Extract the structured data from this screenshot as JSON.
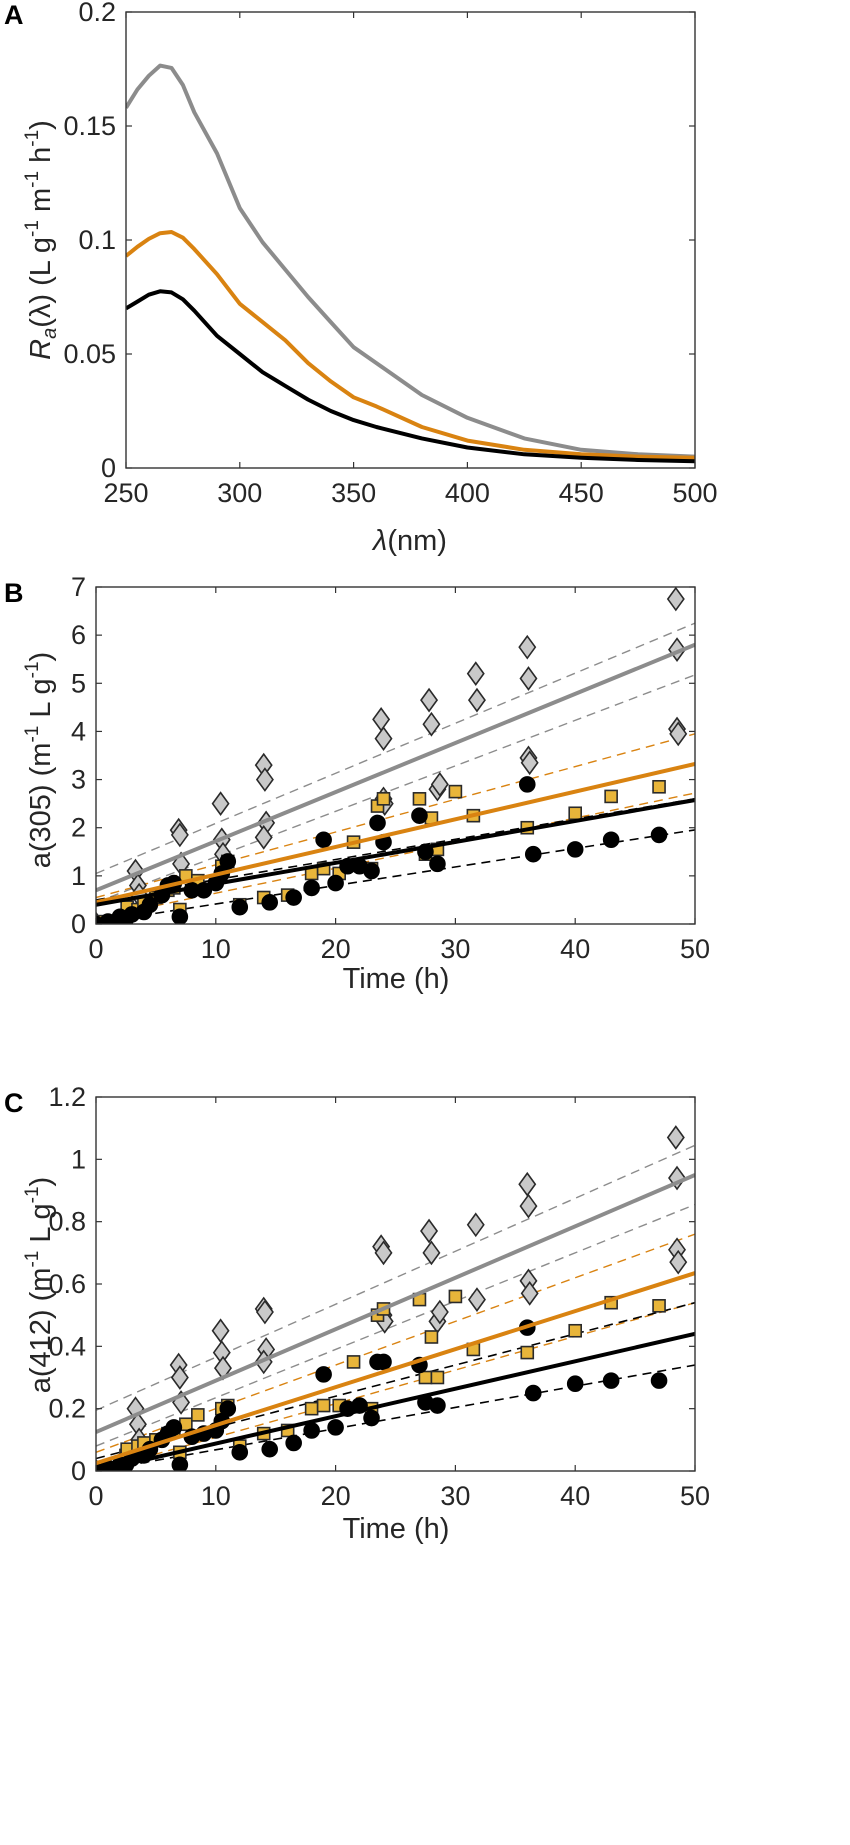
{
  "colors": {
    "gray": "#8c8c8c",
    "orange": "#d98311",
    "black": "#000000",
    "marker_gray": "#c9c9c9",
    "marker_orange": "#e8b53a"
  },
  "chart_data": [
    {
      "panel": "A",
      "type": "line",
      "xlabel_sym": "λ",
      "xlabel_unit": "(nm)",
      "ylabel_sym": "R",
      "ylabel_sub": "a",
      "ylabel_rest": "(λ)  (L g",
      "ylabel_m": "m",
      "ylabel_h": "h",
      "ylabel_sup": "-1",
      "ylabel_close": ")",
      "xlim": [
        250,
        500
      ],
      "ylim": [
        0,
        0.2
      ],
      "xticks": [
        250,
        300,
        350,
        400,
        450,
        500
      ],
      "yticks": [
        0,
        0.05,
        0.1,
        0.15,
        0.2
      ],
      "xtick_labels": [
        "250",
        "300",
        "350",
        "400",
        "450",
        "500"
      ],
      "ytick_labels": [
        "0",
        "0.05",
        "0.1",
        "0.15",
        "0.2"
      ],
      "series": [
        {
          "name": "gray",
          "x": [
            250,
            255,
            260,
            265,
            270,
            275,
            280,
            290,
            300,
            310,
            320,
            330,
            340,
            350,
            360,
            380,
            400,
            425,
            450,
            475,
            500
          ],
          "y": [
            0.158,
            0.166,
            0.172,
            0.1765,
            0.1755,
            0.168,
            0.156,
            0.138,
            0.114,
            0.099,
            0.087,
            0.075,
            0.064,
            0.053,
            0.046,
            0.032,
            0.022,
            0.013,
            0.008,
            0.006,
            0.005
          ]
        },
        {
          "name": "orange",
          "x": [
            250,
            255,
            260,
            265,
            270,
            275,
            280,
            290,
            300,
            310,
            320,
            330,
            340,
            350,
            360,
            380,
            400,
            425,
            450,
            475,
            500
          ],
          "y": [
            0.093,
            0.097,
            0.1005,
            0.103,
            0.1035,
            0.101,
            0.096,
            0.085,
            0.072,
            0.064,
            0.056,
            0.046,
            0.038,
            0.031,
            0.027,
            0.018,
            0.012,
            0.008,
            0.006,
            0.005,
            0.0045
          ]
        },
        {
          "name": "black",
          "x": [
            250,
            255,
            260,
            265,
            270,
            275,
            280,
            290,
            300,
            310,
            320,
            330,
            340,
            350,
            360,
            380,
            400,
            425,
            450,
            475,
            500
          ],
          "y": [
            0.07,
            0.073,
            0.076,
            0.0775,
            0.077,
            0.074,
            0.069,
            0.058,
            0.05,
            0.042,
            0.036,
            0.03,
            0.025,
            0.021,
            0.018,
            0.013,
            0.009,
            0.006,
            0.0045,
            0.0035,
            0.003
          ]
        }
      ]
    },
    {
      "panel": "B",
      "type": "scatter",
      "xlabel": "Time (h)",
      "ylabel": "a(305) (m",
      "ylabel_sup1": "-1",
      "ylabel_mid": " L g",
      "ylabel_sup2": "-1",
      "ylabel_close": ")",
      "xlim": [
        0,
        50
      ],
      "ylim": [
        0,
        7
      ],
      "xticks": [
        0,
        10,
        20,
        30,
        40,
        50
      ],
      "yticks": [
        0,
        1,
        2,
        3,
        4,
        5,
        6,
        7
      ],
      "xtick_labels": [
        "0",
        "10",
        "20",
        "30",
        "40",
        "50"
      ],
      "ytick_labels": [
        "0",
        "1",
        "2",
        "3",
        "4",
        "5",
        "6",
        "7"
      ],
      "fits": [
        {
          "name": "gray",
          "intercept": 0.7,
          "slope": 0.102,
          "ci_upper_intercept": 1.05,
          "ci_upper_slope": 0.104,
          "ci_lower_intercept": 0.45,
          "ci_lower_slope": 0.0945
        },
        {
          "name": "orange",
          "intercept": 0.45,
          "slope": 0.0575,
          "ci_upper_intercept": 0.55,
          "ci_upper_slope": 0.068,
          "ci_lower_intercept": 0.12,
          "ci_lower_slope": 0.052
        },
        {
          "name": "black",
          "intercept": 0.4,
          "slope": 0.0435,
          "ci_upper_intercept": 0.5,
          "ci_upper_slope": 0.042,
          "ci_lower_intercept": 0.03,
          "ci_lower_slope": 0.0385
        }
      ],
      "series": [
        {
          "name": "gray",
          "marker": "diamond",
          "x": [
            0,
            0,
            3.3,
            3.5,
            3.6,
            6.9,
            7.0,
            7.1,
            10.4,
            10.5,
            10.6,
            14.0,
            14.1,
            14.2,
            14.0,
            23.8,
            24.0,
            24.0,
            24.1,
            27.8,
            28.0,
            28.5,
            28.7,
            31.7,
            31.8,
            36.0,
            36.1,
            36.1,
            36.2,
            48.4,
            48.5,
            48.5,
            48.6
          ],
          "y": [
            0,
            0,
            1.1,
            0.8,
            0.6,
            1.95,
            1.85,
            1.25,
            2.5,
            1.75,
            1.45,
            3.3,
            3.0,
            2.1,
            1.8,
            4.25,
            3.85,
            2.6,
            2.5,
            4.65,
            4.15,
            2.8,
            2.9,
            5.2,
            4.65,
            5.75,
            5.1,
            3.45,
            3.35,
            6.75,
            5.7,
            4.05,
            3.95
          ]
        },
        {
          "name": "orange",
          "marker": "square",
          "x": [
            0,
            0.5,
            2.5,
            2.6,
            3.5,
            4.0,
            5.0,
            6.0,
            6.5,
            7.0,
            7.5,
            8.5,
            10.5,
            11.0,
            12.0,
            14.0,
            16.0,
            18.0,
            19.0,
            20.3,
            21.5,
            23.0,
            23.5,
            24.0,
            27.0,
            27.5,
            28.0,
            28.5,
            30.0,
            31.5,
            36.0,
            40.0,
            43.0,
            47.0
          ],
          "y": [
            0,
            0.05,
            0.15,
            0.35,
            0.3,
            0.45,
            0.55,
            0.7,
            0.75,
            0.3,
            1.0,
            0.9,
            1.2,
            1.3,
            0.4,
            0.55,
            0.6,
            1.05,
            1.15,
            1.05,
            1.7,
            1.15,
            2.45,
            2.6,
            2.6,
            1.45,
            2.2,
            1.55,
            2.75,
            2.25,
            2.0,
            2.3,
            2.65,
            2.85
          ]
        },
        {
          "name": "black",
          "marker": "circle",
          "x": [
            0,
            1,
            2,
            2.5,
            3,
            4,
            4.5,
            5.5,
            6,
            6.5,
            7,
            8,
            9,
            10,
            10.5,
            11,
            12,
            14.5,
            16.5,
            18,
            19,
            20,
            21,
            22,
            23.5,
            24,
            27,
            27.5,
            28.5,
            36,
            36.5,
            40,
            43,
            47,
            23
          ],
          "y": [
            0,
            0.05,
            0.15,
            0.1,
            0.2,
            0.25,
            0.4,
            0.6,
            0.8,
            0.85,
            0.15,
            0.7,
            0.7,
            0.85,
            1.05,
            1.3,
            0.35,
            0.45,
            0.55,
            0.75,
            1.75,
            0.85,
            1.2,
            1.2,
            2.1,
            1.7,
            2.25,
            1.5,
            1.25,
            2.9,
            1.45,
            1.55,
            1.75,
            1.85,
            1.1
          ]
        }
      ]
    },
    {
      "panel": "C",
      "type": "scatter",
      "xlabel": "Time (h)",
      "ylabel": "a(412) (m",
      "ylabel_sup1": "-1",
      "ylabel_mid": " L g",
      "ylabel_sup2": "-1",
      "ylabel_close": ")",
      "xlim": [
        0,
        50
      ],
      "ylim": [
        0,
        1.2
      ],
      "xticks": [
        0,
        10,
        20,
        30,
        40,
        50
      ],
      "yticks": [
        0,
        0.2,
        0.4,
        0.6,
        0.8,
        1,
        1.2
      ],
      "xtick_labels": [
        "0",
        "10",
        "20",
        "30",
        "40",
        "50"
      ],
      "ytick_labels": [
        "0",
        "0.2",
        "0.4",
        "0.6",
        "0.8",
        "1",
        "1.2"
      ],
      "fits": [
        {
          "name": "gray",
          "intercept": 0.125,
          "slope": 0.0165,
          "ci_upper_intercept": 0.195,
          "ci_upper_slope": 0.017,
          "ci_lower_intercept": 0.08,
          "ci_lower_slope": 0.0155
        },
        {
          "name": "orange",
          "intercept": 0.025,
          "slope": 0.0122,
          "ci_upper_intercept": 0.06,
          "ci_upper_slope": 0.014,
          "ci_lower_intercept": 0.0,
          "ci_lower_slope": 0.0108
        },
        {
          "name": "black",
          "intercept": 0.0,
          "slope": 0.0088,
          "ci_upper_intercept": 0.04,
          "ci_upper_slope": 0.01,
          "ci_lower_intercept": 0.0,
          "ci_lower_slope": 0.0068
        }
      ],
      "series": [
        {
          "name": "gray",
          "marker": "diamond",
          "x": [
            0,
            3.3,
            3.5,
            3.6,
            6.9,
            7.0,
            7.1,
            10.4,
            10.5,
            10.6,
            14.0,
            14.1,
            14.2,
            14.0,
            23.8,
            24.0,
            24.0,
            24.1,
            27.8,
            28.0,
            28.5,
            28.7,
            31.7,
            31.8,
            36.0,
            36.1,
            36.1,
            36.2,
            48.4,
            48.5,
            48.5,
            48.6
          ],
          "y": [
            0,
            0.2,
            0.15,
            0.1,
            0.34,
            0.3,
            0.22,
            0.45,
            0.38,
            0.33,
            0.52,
            0.51,
            0.39,
            0.35,
            0.72,
            0.7,
            0.5,
            0.48,
            0.77,
            0.7,
            0.48,
            0.51,
            0.79,
            0.55,
            0.92,
            0.85,
            0.61,
            0.57,
            1.07,
            0.94,
            0.71,
            0.67
          ]
        },
        {
          "name": "orange",
          "marker": "square",
          "x": [
            0,
            0.5,
            2.5,
            2.6,
            3.5,
            4.0,
            5.0,
            6.0,
            6.5,
            7.0,
            7.5,
            8.5,
            10.5,
            11.0,
            12.0,
            14.0,
            16.0,
            18.0,
            19.0,
            20.3,
            21.5,
            23.0,
            23.5,
            24.0,
            27.0,
            27.5,
            28.0,
            28.5,
            30.0,
            31.5,
            36.0,
            40.0,
            43.0,
            47.0
          ],
          "y": [
            0,
            0.01,
            0.05,
            0.07,
            0.08,
            0.09,
            0.1,
            0.12,
            0.13,
            0.06,
            0.15,
            0.18,
            0.2,
            0.21,
            0.08,
            0.12,
            0.13,
            0.2,
            0.21,
            0.21,
            0.35,
            0.2,
            0.5,
            0.52,
            0.55,
            0.3,
            0.43,
            0.3,
            0.56,
            0.39,
            0.38,
            0.45,
            0.54,
            0.53
          ]
        },
        {
          "name": "black",
          "marker": "circle",
          "x": [
            0,
            1,
            2,
            2.5,
            3,
            4,
            4.5,
            5.5,
            6,
            6.5,
            7,
            8,
            9,
            10,
            10.5,
            11,
            12,
            14.5,
            16.5,
            18,
            19,
            20,
            21,
            22,
            23.5,
            24,
            27,
            27.5,
            28.5,
            36,
            36.5,
            40,
            43,
            47,
            23
          ],
          "y": [
            0,
            0.01,
            0.02,
            0.02,
            0.04,
            0.05,
            0.07,
            0.1,
            0.12,
            0.14,
            0.02,
            0.11,
            0.12,
            0.13,
            0.16,
            0.2,
            0.06,
            0.07,
            0.09,
            0.13,
            0.31,
            0.14,
            0.2,
            0.21,
            0.35,
            0.35,
            0.34,
            0.22,
            0.21,
            0.46,
            0.25,
            0.28,
            0.29,
            0.29,
            0.17
          ]
        }
      ]
    }
  ]
}
